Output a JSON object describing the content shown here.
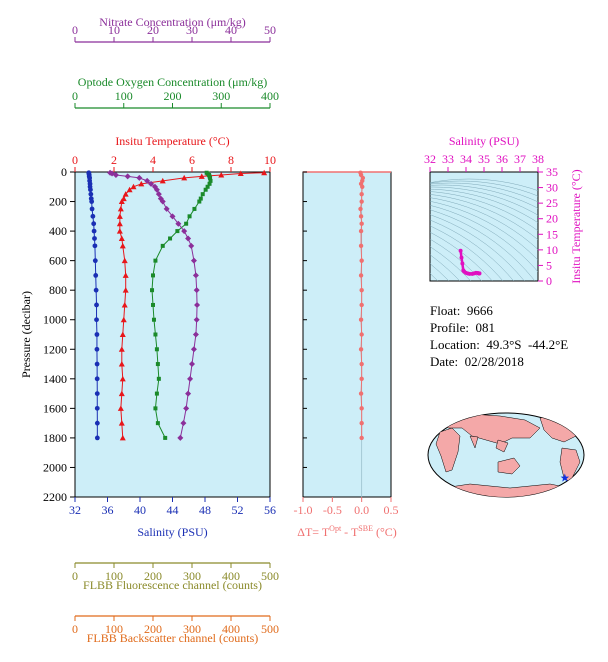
{
  "info": {
    "float": "Float:  9666",
    "profile": "Profile:  081",
    "location": "Location:  49.3°S  -44.2°E",
    "date": "Date:  02/28/2018"
  },
  "colors": {
    "panel_bg": "#cdeef8",
    "nitrate": "#8b2f9a",
    "oxygen": "#1a8a2a",
    "temperature": "#e8161a",
    "salinity": "#1a2fb4",
    "fluorescence": "#8a8a2a",
    "backscatter": "#e06a1a",
    "delta_t": "#f07070",
    "ts_axis": "#e010c0"
  },
  "chart_data": [
    {
      "type": "line",
      "title": "",
      "ylabel": "Pressure (decibar)",
      "ylim": [
        2200,
        0
      ],
      "yticks": [
        0,
        200,
        400,
        600,
        800,
        1000,
        1200,
        1400,
        1600,
        1800,
        2000,
        2200
      ],
      "axes": [
        {
          "key": "nitrate",
          "label": "Nitrate Concentration (μm/kg)",
          "lim": [
            0,
            50
          ],
          "ticks": [
            0,
            10,
            20,
            30,
            40,
            50
          ]
        },
        {
          "key": "oxygen",
          "label": "Optode Oxygen Concentration (μm/kg)",
          "lim": [
            0,
            400
          ],
          "ticks": [
            0,
            100,
            200,
            300,
            400
          ]
        },
        {
          "key": "temperature",
          "label": "Insitu Temperature (°C)",
          "lim": [
            0,
            10
          ],
          "ticks": [
            0,
            2,
            4,
            6,
            8,
            10
          ]
        },
        {
          "key": "salinity",
          "label": "Salinity (PSU)",
          "lim": [
            32,
            56
          ],
          "ticks": [
            32,
            36,
            40,
            44,
            48,
            52,
            56
          ]
        },
        {
          "key": "fluorescence",
          "label": "FLBB Fluorescence channel (counts)",
          "lim": [
            0,
            500
          ],
          "ticks": [
            0,
            100,
            200,
            300,
            400,
            500
          ]
        },
        {
          "key": "backscatter",
          "label": "FLBB Backscatter channel (counts)",
          "lim": [
            0,
            500
          ],
          "ticks": [
            0,
            100,
            200,
            300,
            400,
            500
          ]
        }
      ],
      "pressure": [
        5,
        10,
        20,
        30,
        40,
        60,
        80,
        100,
        120,
        150,
        180,
        200,
        250,
        300,
        350,
        400,
        450,
        500,
        600,
        700,
        800,
        900,
        1000,
        1100,
        1200,
        1300,
        1400,
        1500,
        1600,
        1700,
        1800
      ],
      "series": [
        {
          "key": "temperature",
          "marker": "triangle",
          "values": [
            9.7,
            8.5,
            7.5,
            6.5,
            5.6,
            4.5,
            3.4,
            3.0,
            2.8,
            2.6,
            2.5,
            2.4,
            2.35,
            2.3,
            2.3,
            2.3,
            2.4,
            2.45,
            2.55,
            2.6,
            2.6,
            2.55,
            2.5,
            2.45,
            2.4,
            2.4,
            2.45,
            2.4,
            2.35,
            2.4,
            2.45
          ]
        },
        {
          "key": "salinity",
          "marker": "circle",
          "values": [
            33.7,
            33.7,
            33.75,
            33.75,
            33.8,
            33.8,
            33.85,
            33.85,
            33.9,
            33.95,
            34.0,
            34.05,
            34.1,
            34.2,
            34.3,
            34.35,
            34.4,
            34.45,
            34.5,
            34.55,
            34.6,
            34.65,
            34.65,
            34.7,
            34.7,
            34.72,
            34.73,
            34.74,
            34.74,
            34.75,
            34.75
          ]
        },
        {
          "key": "oxygen",
          "marker": "square",
          "values": [
            270,
            272,
            275,
            276,
            277,
            278,
            276,
            272,
            268,
            262,
            258,
            255,
            245,
            235,
            228,
            210,
            195,
            180,
            165,
            160,
            158,
            160,
            162,
            165,
            168,
            170,
            172,
            168,
            165,
            170,
            185
          ]
        },
        {
          "key": "nitrate",
          "marker": "diamond",
          "values": [
            9.0,
            9.5,
            10.5,
            13.5,
            16.5,
            18.5,
            19.5,
            20.5,
            21.0,
            21.5,
            22.0,
            22.5,
            23.5,
            25.0,
            26.5,
            28.0,
            29.0,
            29.8,
            30.5,
            31.0,
            31.2,
            31.3,
            31.2,
            31.0,
            30.5,
            30.0,
            29.5,
            29.0,
            28.5,
            27.8,
            27.0
          ]
        }
      ]
    },
    {
      "type": "scatter",
      "xlabel_parts": [
        "ΔT= T",
        "Opt",
        " - T",
        "SBE",
        " (°C)"
      ],
      "xlim": [
        -1.0,
        0.5
      ],
      "xticks": [
        -1.0,
        -0.5,
        0.0,
        0.5
      ],
      "ylim": [
        2200,
        0
      ],
      "pressure": [
        5,
        20,
        40,
        60,
        80,
        100,
        150,
        200,
        250,
        300,
        350,
        400,
        500,
        600,
        700,
        800,
        900,
        1000,
        1100,
        1200,
        1300,
        1400,
        1500,
        1600,
        1700,
        1800
      ],
      "values": [
        -0.02,
        -0.01,
        0.02,
        0.01,
        -0.01,
        0.01,
        0.0,
        0.0,
        -0.02,
        -0.01,
        0.0,
        -0.01,
        -0.01,
        0.0,
        -0.01,
        0.0,
        0.0,
        -0.01,
        0.0,
        -0.01,
        0.0,
        0.0,
        -0.01,
        0.0,
        0.0,
        0.0
      ]
    },
    {
      "type": "scatter",
      "xlabel": "Salinity (PSU)",
      "ylabel": "Insitu Temperature (°C)",
      "xlim": [
        32,
        38
      ],
      "ylim": [
        0,
        35
      ],
      "xticks": [
        32,
        33,
        34,
        35,
        36,
        37,
        38
      ],
      "yticks": [
        0,
        5,
        10,
        15,
        20,
        25,
        30,
        35
      ],
      "grid": "density contours",
      "salinity": [
        33.7,
        33.75,
        33.8,
        33.85,
        33.9,
        34.0,
        34.1,
        34.2,
        34.35,
        34.45,
        34.55,
        34.65,
        34.7,
        34.73,
        34.75
      ],
      "temperature": [
        9.7,
        7.5,
        5.6,
        3.4,
        3.0,
        2.6,
        2.4,
        2.3,
        2.3,
        2.45,
        2.6,
        2.55,
        2.45,
        2.4,
        2.45
      ]
    },
    {
      "type": "map",
      "projection": "world",
      "marker": {
        "lat": -49.3,
        "lon": -44.2,
        "symbol": "star"
      }
    }
  ]
}
